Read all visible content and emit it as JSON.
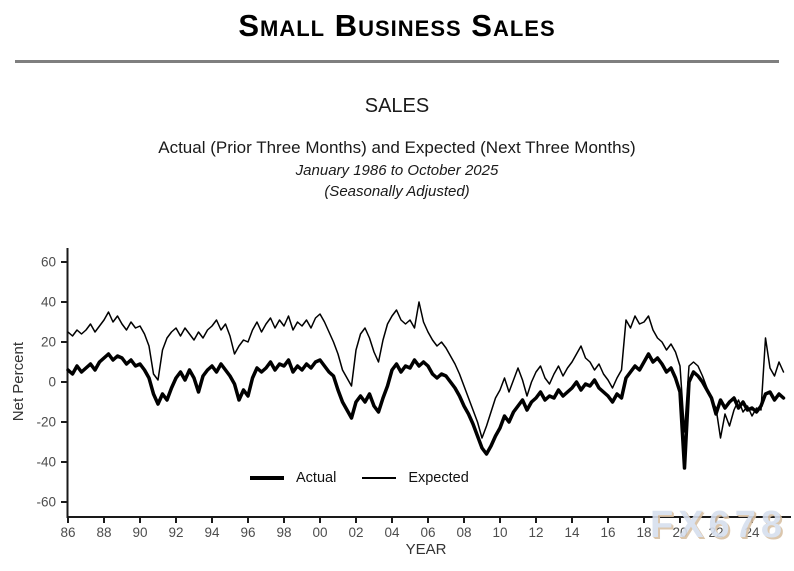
{
  "header": {
    "title": "Small Business Sales"
  },
  "chart_header": {
    "title": "SALES",
    "subtitle": "Actual (Prior Three Months) and Expected (Next Three Months)",
    "date_range": "January 1986 to October 2025",
    "adjustment_note": "(Seasonally Adjusted)"
  },
  "watermark": "FX678",
  "chart_data": {
    "type": "line",
    "title": "SALES",
    "xlabel": "YEAR",
    "ylabel": "Net Percent",
    "x_start": 1986.0,
    "x_step_years": 0.25,
    "x_end": 2025.75,
    "xlim": [
      1986,
      2026.2
    ],
    "ylim": [
      -60,
      60
    ],
    "grid": "off",
    "legend_position": "inside-bottom-center",
    "y_ticks": [
      60,
      40,
      20,
      0,
      -20,
      -40,
      -60
    ],
    "x_ticks": [
      {
        "year": 1986,
        "label": "86"
      },
      {
        "year": 1988,
        "label": "88"
      },
      {
        "year": 1990,
        "label": "90"
      },
      {
        "year": 1992,
        "label": "92"
      },
      {
        "year": 1994,
        "label": "94"
      },
      {
        "year": 1996,
        "label": "96"
      },
      {
        "year": 1998,
        "label": "98"
      },
      {
        "year": 2000,
        "label": "00"
      },
      {
        "year": 2002,
        "label": "02"
      },
      {
        "year": 2004,
        "label": "04"
      },
      {
        "year": 2006,
        "label": "06"
      },
      {
        "year": 2008,
        "label": "08"
      },
      {
        "year": 2010,
        "label": "10"
      },
      {
        "year": 2012,
        "label": "12"
      },
      {
        "year": 2014,
        "label": "14"
      },
      {
        "year": 2016,
        "label": "16"
      },
      {
        "year": 2018,
        "label": "18"
      },
      {
        "year": 2020,
        "label": "20"
      },
      {
        "year": 2022,
        "label": "22"
      },
      {
        "year": 2024,
        "label": "24"
      }
    ],
    "colors": {
      "line": "#000000",
      "axis": "#1a1a1a",
      "tick_label": "#4d4d4d"
    },
    "series": [
      {
        "name": "Actual",
        "style": "thick",
        "values": [
          6,
          4,
          8,
          5,
          7,
          9,
          6,
          10,
          12,
          14,
          11,
          13,
          12,
          9,
          11,
          8,
          9,
          6,
          2,
          -6,
          -11,
          -6,
          -9,
          -3,
          2,
          5,
          1,
          6,
          2,
          -5,
          3,
          6,
          8,
          5,
          9,
          6,
          3,
          -1,
          -9,
          -4,
          -7,
          2,
          7,
          5,
          7,
          10,
          6,
          9,
          8,
          11,
          5,
          8,
          6,
          9,
          7,
          10,
          11,
          8,
          5,
          3,
          -4,
          -10,
          -14,
          -18,
          -10,
          -7,
          -10,
          -6,
          -12,
          -15,
          -8,
          -2,
          6,
          9,
          5,
          8,
          7,
          11,
          8,
          10,
          8,
          4,
          2,
          4,
          3,
          0,
          -3,
          -7,
          -12,
          -16,
          -21,
          -27,
          -33,
          -36,
          -32,
          -27,
          -23,
          -17,
          -20,
          -15,
          -12,
          -9,
          -14,
          -10,
          -8,
          -5,
          -9,
          -7,
          -8,
          -4,
          -7,
          -5,
          -3,
          0,
          -4,
          -1,
          -2,
          1,
          -3,
          -5,
          -7,
          -10,
          -6,
          -8,
          2,
          5,
          8,
          6,
          10,
          14,
          10,
          12,
          9,
          5,
          7,
          2,
          -5,
          -43,
          0,
          5,
          3,
          0,
          -4,
          -8,
          -16,
          -9,
          -13,
          -10,
          -8,
          -13,
          -10,
          -14,
          -13,
          -15,
          -12,
          -6,
          -5,
          -9,
          -6,
          -8
        ]
      },
      {
        "name": "Expected",
        "style": "thin",
        "values": [
          25,
          23,
          26,
          24,
          26,
          29,
          25,
          28,
          31,
          35,
          30,
          33,
          29,
          26,
          30,
          27,
          28,
          24,
          18,
          4,
          1,
          16,
          22,
          25,
          27,
          23,
          27,
          24,
          21,
          25,
          22,
          26,
          28,
          31,
          26,
          29,
          23,
          14,
          18,
          21,
          20,
          26,
          30,
          25,
          29,
          32,
          27,
          31,
          28,
          33,
          26,
          30,
          28,
          31,
          27,
          32,
          34,
          30,
          25,
          20,
          14,
          6,
          2,
          -2,
          16,
          24,
          27,
          22,
          15,
          10,
          21,
          29,
          33,
          36,
          31,
          29,
          31,
          27,
          40,
          30,
          25,
          21,
          18,
          20,
          17,
          13,
          9,
          4,
          -2,
          -8,
          -14,
          -20,
          -28,
          -22,
          -15,
          -8,
          -4,
          2,
          -5,
          1,
          7,
          1,
          -7,
          0,
          5,
          8,
          2,
          -1,
          4,
          8,
          3,
          7,
          10,
          14,
          18,
          12,
          10,
          6,
          9,
          4,
          1,
          -3,
          2,
          6,
          31,
          27,
          33,
          29,
          30,
          33,
          26,
          22,
          20,
          16,
          19,
          15,
          8,
          -25,
          8,
          10,
          8,
          3,
          -3,
          -9,
          -13,
          -28,
          -16,
          -22,
          -14,
          -9,
          -15,
          -12,
          -17,
          -13,
          -14,
          22,
          7,
          3,
          10,
          5
        ]
      }
    ]
  }
}
